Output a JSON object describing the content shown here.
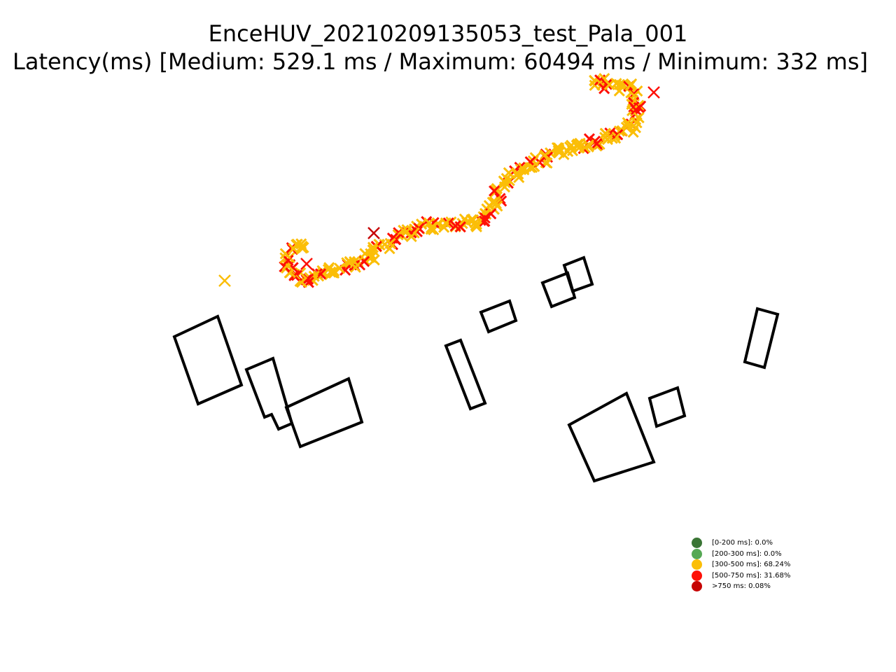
{
  "chart_data": {
    "type": "scatter",
    "title": "EnceHUV_20210209135053_test_Pala_001",
    "subtitle": "Latency(ms) [Medium: 529.1 ms / Maximum: 60494 ms / Minimum: 332 ms]",
    "marker": "x",
    "legend": {
      "placement": "bottom-right",
      "entries": [
        {
          "label": "[0-200 ms]: 0.0%",
          "color": "#3a7535"
        },
        {
          "label": "[200-300 ms]: 0.0%",
          "color": "#55a854"
        },
        {
          "label": "[300-500 ms]: 68.24%",
          "color": "#fbbe07"
        },
        {
          "label": "[500-750 ms]: 31.68%",
          "color": "#fe1007"
        },
        {
          "label": ">750 ms: 0.08%",
          "color": "#c60303"
        }
      ]
    },
    "track": [
      [
        850,
        115
      ],
      [
        875,
        122
      ],
      [
        900,
        125
      ],
      [
        908,
        140
      ],
      [
        910,
        160
      ],
      [
        905,
        180
      ],
      [
        890,
        192
      ],
      [
        865,
        198
      ],
      [
        840,
        205
      ],
      [
        815,
        213
      ],
      [
        790,
        220
      ],
      [
        765,
        232
      ],
      [
        745,
        242
      ],
      [
        728,
        255
      ],
      [
        715,
        272
      ],
      [
        705,
        290
      ],
      [
        700,
        308
      ],
      [
        690,
        318
      ],
      [
        670,
        320
      ],
      [
        645,
        320
      ],
      [
        620,
        322
      ],
      [
        595,
        328
      ],
      [
        570,
        336
      ],
      [
        550,
        350
      ],
      [
        530,
        365
      ],
      [
        505,
        375
      ],
      [
        480,
        385
      ],
      [
        460,
        395
      ],
      [
        440,
        400
      ],
      [
        420,
        395
      ],
      [
        412,
        380
      ],
      [
        412,
        360
      ],
      [
        425,
        352
      ],
      [
        440,
        352
      ]
    ],
    "outliers": [
      {
        "x": 934,
        "y": 132,
        "series": "[500-750 ms]"
      },
      {
        "x": 534,
        "y": 333,
        "series": ">750 ms"
      },
      {
        "x": 321,
        "y": 401,
        "series": "[300-500 ms]"
      },
      {
        "x": 438,
        "y": 377,
        "series": "[500-750 ms]"
      }
    ],
    "buildings": [
      [
        [
          249,
          481
        ],
        [
          311,
          452
        ],
        [
          345,
          550
        ],
        [
          283,
          577
        ]
      ],
      [
        [
          352,
          528
        ],
        [
          390,
          512
        ],
        [
          417,
          605
        ],
        [
          398,
          613
        ],
        [
          388,
          592
        ],
        [
          378,
          596
        ]
      ],
      [
        [
          409,
          582
        ],
        [
          498,
          541
        ],
        [
          517,
          603
        ],
        [
          429,
          638
        ]
      ],
      [
        [
          637,
          494
        ],
        [
          658,
          486
        ],
        [
          693,
          576
        ],
        [
          672,
          584
        ]
      ],
      [
        [
          687,
          446
        ],
        [
          728,
          430
        ],
        [
          737,
          458
        ],
        [
          698,
          474
        ]
      ],
      [
        [
          775,
          404
        ],
        [
          811,
          390
        ],
        [
          821,
          425
        ],
        [
          788,
          438
        ]
      ],
      [
        [
          806,
          379
        ],
        [
          834,
          368
        ],
        [
          846,
          406
        ],
        [
          818,
          416
        ]
      ],
      [
        [
          1082,
          441
        ],
        [
          1111,
          449
        ],
        [
          1092,
          525
        ],
        [
          1064,
          517
        ]
      ],
      [
        [
          813,
          607
        ],
        [
          895,
          562
        ],
        [
          934,
          660
        ],
        [
          849,
          687
        ]
      ],
      [
        [
          928,
          569
        ],
        [
          968,
          554
        ],
        [
          978,
          594
        ],
        [
          938,
          609
        ]
      ]
    ],
    "grid": false,
    "axes_visible": false
  }
}
